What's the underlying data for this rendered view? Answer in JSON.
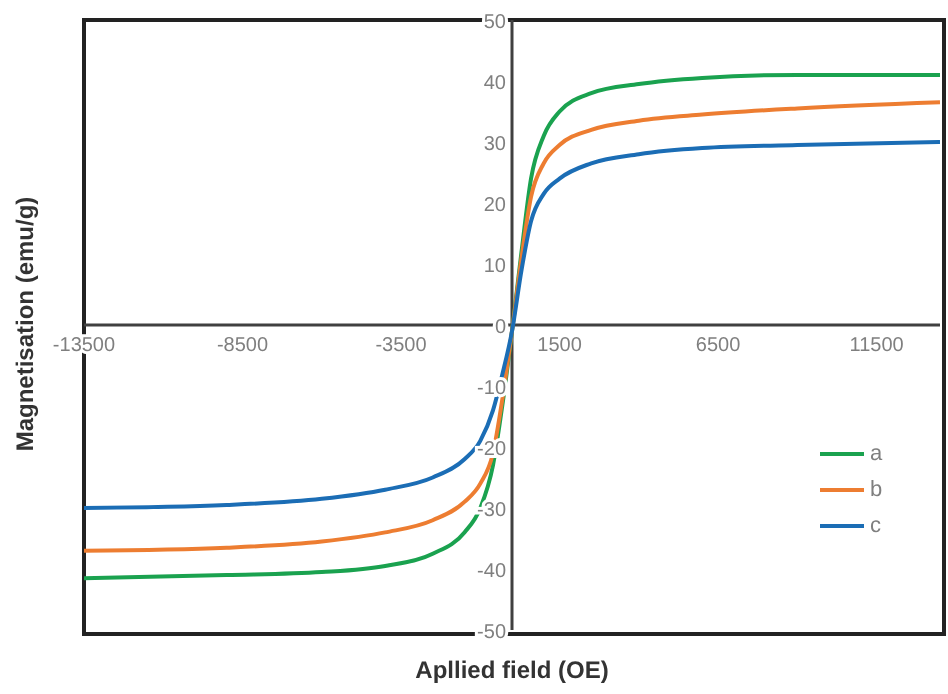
{
  "chart_data": {
    "type": "line",
    "xlabel": "Apllied field (OE)",
    "ylabel": "Magnetisation (emu/g)",
    "xlim": [
      -13500,
      13500
    ],
    "xticks": [
      -13500,
      -8500,
      -3500,
      1500,
      6500,
      11500
    ],
    "ylim": [
      -50,
      50
    ],
    "yticks": [
      -50,
      -40,
      -30,
      -20,
      -10,
      0,
      10,
      20,
      30,
      40,
      50
    ],
    "grid": false,
    "legend": "right",
    "marker": "none",
    "line_style": "solid",
    "x": [
      -13500,
      -9000,
      -6000,
      -4000,
      -2500,
      -1500,
      -1000,
      -600,
      -300,
      0,
      300,
      600,
      1000,
      1500,
      2500,
      4000,
      6000,
      9000,
      13500
    ],
    "series": [
      {
        "name": "a",
        "color": "#1aa24f",
        "values": [
          -41.5,
          -41,
          -40.5,
          -39.5,
          -37.5,
          -34,
          -30,
          -23,
          -13,
          -1,
          12,
          24,
          31,
          35,
          38,
          39.5,
          40.5,
          41,
          41
        ]
      },
      {
        "name": "b",
        "color": "#ed7d31",
        "values": [
          -37,
          -36.5,
          -35.5,
          -34,
          -32,
          -29,
          -26,
          -21,
          -12,
          -1,
          11,
          21,
          26.5,
          29.5,
          32,
          33.5,
          34.5,
          35.5,
          36.5
        ]
      },
      {
        "name": "c",
        "color": "#1b6db5",
        "values": [
          -30,
          -29.5,
          -28.5,
          -27,
          -25,
          -22,
          -19,
          -14,
          -8,
          -1,
          9,
          17,
          21.5,
          24,
          26.5,
          28,
          29,
          29.5,
          30
        ]
      }
    ]
  }
}
